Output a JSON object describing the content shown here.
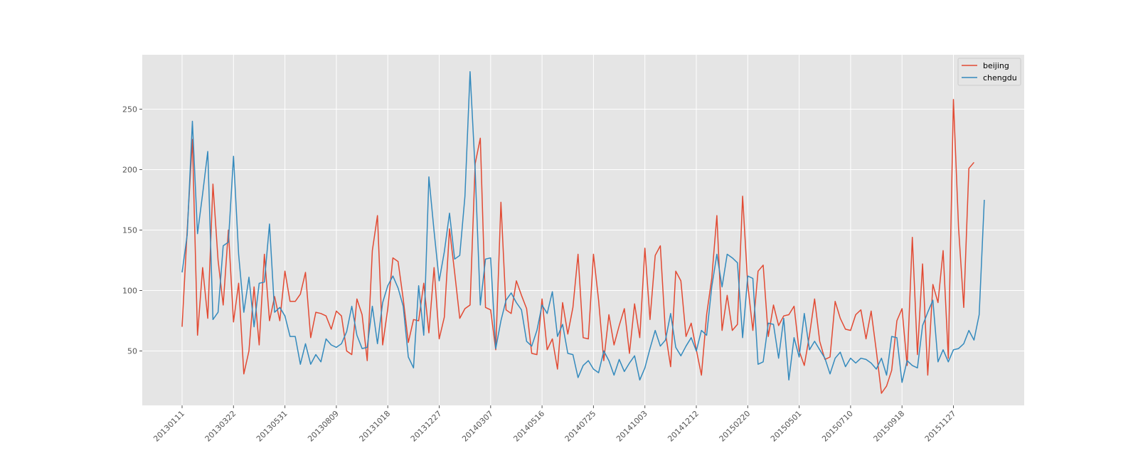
{
  "chart_data": {
    "type": "line",
    "title": "",
    "xlabel": "",
    "ylabel": "",
    "x_tick_labels": [
      "20130111",
      "20130322",
      "20130531",
      "20130809",
      "20131018",
      "20131227",
      "20140307",
      "20140516",
      "20140725",
      "20141003",
      "20141212",
      "20150220",
      "20150501",
      "20150710",
      "20150918",
      "20151127"
    ],
    "x_tick_indices": [
      0,
      10,
      20,
      30,
      40,
      50,
      60,
      70,
      80,
      90,
      100,
      110,
      120,
      130,
      140,
      150
    ],
    "y_ticks": [
      50,
      100,
      150,
      200,
      250
    ],
    "ylim": [
      5,
      295
    ],
    "grid": true,
    "legend_position": "top-right",
    "series": [
      {
        "name": "beijing",
        "color": "#E24A33",
        "values": [
          70,
          150,
          225,
          63,
          119,
          77,
          188,
          125,
          88,
          150,
          74,
          106,
          31,
          50,
          103,
          55,
          130,
          75,
          95,
          75,
          116,
          91,
          91,
          97,
          115,
          61,
          82,
          81,
          79,
          68,
          83,
          79,
          50,
          47,
          93,
          80,
          42,
          133,
          162,
          55,
          85,
          127,
          124,
          93,
          57,
          76,
          75,
          106,
          65,
          119,
          60,
          78,
          151,
          115,
          77,
          85,
          88,
          205,
          226,
          86,
          84,
          51,
          173,
          84,
          81,
          108,
          96,
          85,
          48,
          47,
          93,
          51,
          60,
          35,
          90,
          64,
          86,
          130,
          61,
          60,
          130,
          92,
          42,
          80,
          55,
          71,
          85,
          48,
          89,
          61,
          135,
          76,
          129,
          137,
          65,
          37,
          116,
          108,
          62,
          73,
          51,
          30,
          80,
          110,
          162,
          67,
          96,
          67,
          72,
          178,
          105,
          67,
          116,
          121,
          62,
          88,
          71,
          79,
          80,
          87,
          50,
          38,
          63,
          93,
          58,
          43,
          45,
          91,
          77,
          68,
          67,
          80,
          84,
          60,
          83,
          50,
          15,
          21,
          34,
          75,
          85,
          38,
          144,
          47,
          122,
          30,
          105,
          90,
          133,
          44,
          258,
          152,
          86,
          201,
          206
        ],
        "style": "solid"
      },
      {
        "name": "chengdu",
        "color": "#348ABD",
        "values": [
          115,
          146,
          240,
          147,
          180,
          215,
          76,
          82,
          137,
          140,
          211,
          130,
          82,
          111,
          70,
          106,
          107,
          155,
          82,
          86,
          79,
          62,
          62,
          39,
          56,
          39,
          47,
          41,
          60,
          55,
          53,
          56,
          66,
          87,
          63,
          52,
          53,
          87,
          56,
          90,
          104,
          112,
          102,
          87,
          45,
          36,
          104,
          63,
          194,
          149,
          108,
          132,
          164,
          126,
          129,
          178,
          281,
          199,
          88,
          126,
          127,
          52,
          75,
          92,
          98,
          90,
          84,
          58,
          54,
          67,
          88,
          81,
          99,
          62,
          72,
          48,
          47,
          28,
          38,
          42,
          35,
          32,
          50,
          42,
          30,
          43,
          33,
          40,
          46,
          26,
          36,
          52,
          67,
          54,
          59,
          81,
          53,
          46,
          54,
          61,
          50,
          67,
          63,
          103,
          130,
          103,
          130,
          127,
          123,
          61,
          112,
          110,
          39,
          41,
          73,
          72,
          44,
          77,
          26,
          61,
          45,
          81,
          51,
          58,
          51,
          44,
          31,
          44,
          49,
          37,
          44,
          40,
          44,
          43,
          40,
          35,
          44,
          30,
          62,
          61,
          24,
          42,
          38,
          36,
          71,
          82,
          92,
          41,
          51,
          41,
          51,
          52,
          56,
          67,
          59,
          80,
          175
        ],
        "style": "solid"
      }
    ]
  }
}
